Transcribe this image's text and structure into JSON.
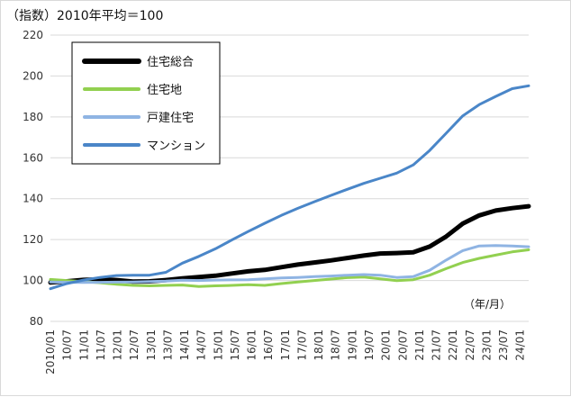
{
  "chart_data": {
    "type": "line",
    "title": "（指数）2010年平均＝100",
    "x_unit_label": "（年/月）",
    "ylim": [
      80,
      220
    ],
    "y_ticks": [
      80,
      100,
      120,
      140,
      160,
      180,
      200,
      220
    ],
    "grid": "horizontal",
    "legend_position": "top-left",
    "x_tick_labels": [
      "2010/01",
      "10/07",
      "11/01",
      "11/07",
      "12/01",
      "12/07",
      "13/01",
      "13/07",
      "14/01",
      "14/07",
      "15/01",
      "15/07",
      "16/01",
      "16/07",
      "17/01",
      "17/07",
      "18/01",
      "18/07",
      "19/01",
      "19/07",
      "20/01",
      "20/07",
      "21/01",
      "21/07",
      "22/01",
      "22/07",
      "23/01",
      "23/07",
      "24/01"
    ],
    "x_label_step_months": 6,
    "series": [
      {
        "name": "住宅総合",
        "color": "#000000",
        "width": 5,
        "values": [
          99.0,
          99.6,
          100.3,
          100.5,
          100.2,
          99.5,
          99.6,
          100.2,
          101.0,
          101.7,
          102.3,
          103.4,
          104.5,
          105.2,
          106.5,
          107.8,
          108.8,
          109.8,
          111.0,
          112.2,
          113.2,
          113.4,
          113.8,
          116.6,
          121.5,
          127.8,
          131.8,
          134.2,
          135.4,
          136.3
        ]
      },
      {
        "name": "住宅地",
        "color": "#92d050",
        "width": 3,
        "values": [
          100.5,
          100.0,
          99.5,
          98.9,
          98.2,
          97.6,
          97.4,
          97.6,
          97.8,
          97.1,
          97.4,
          97.6,
          97.9,
          97.6,
          98.5,
          99.3,
          100.0,
          100.7,
          101.4,
          101.7,
          100.8,
          99.9,
          100.4,
          102.6,
          105.8,
          108.8,
          110.8,
          112.4,
          114.0,
          115.0
        ]
      },
      {
        "name": "戸建住宅",
        "color": "#8fb4e3",
        "width": 3,
        "values": [
          99.3,
          99.1,
          99.0,
          99.1,
          99.2,
          99.3,
          99.5,
          99.7,
          100.1,
          100.0,
          100.2,
          100.3,
          100.4,
          100.8,
          101.2,
          101.5,
          101.9,
          102.2,
          102.6,
          102.9,
          102.6,
          101.5,
          101.9,
          105.0,
          110.0,
          114.6,
          116.9,
          117.1,
          116.9,
          116.5
        ]
      },
      {
        "name": "マンション",
        "color": "#4a86c8",
        "width": 3,
        "values": [
          96.0,
          98.5,
          100.2,
          101.5,
          102.4,
          102.6,
          102.6,
          104.0,
          108.5,
          111.8,
          115.5,
          119.8,
          124.0,
          128.0,
          131.8,
          135.3,
          138.5,
          141.6,
          144.6,
          147.5,
          150.0,
          152.5,
          156.5,
          163.6,
          172.0,
          180.5,
          186.0,
          190.0,
          193.8,
          195.2
        ]
      }
    ]
  }
}
